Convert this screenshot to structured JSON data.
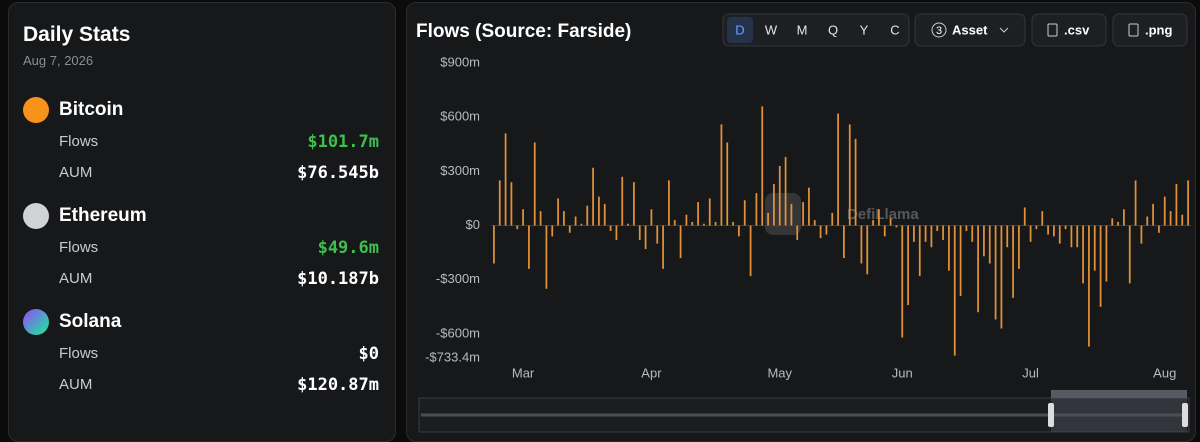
{
  "stats": {
    "title": "Daily Stats",
    "date": "Aug 7, 2026",
    "assets": [
      {
        "name": "Bitcoin",
        "flows_label": "Flows",
        "flows": "$101.7m",
        "aum_label": "AUM",
        "aum": "$76.545b"
      },
      {
        "name": "Ethereum",
        "flows_label": "Flows",
        "flows": "$49.6m",
        "aum_label": "AUM",
        "aum": "$10.187b"
      },
      {
        "name": "Solana",
        "flows_label": "Flows",
        "flows": "$0",
        "aum_label": "AUM",
        "aum": "$120.87m"
      }
    ]
  },
  "controls": {
    "periods": [
      "D",
      "W",
      "M",
      "Q",
      "Y",
      "C"
    ],
    "asset_count": 3,
    "asset": "Asset",
    "csv": ".csv",
    "png": ".png"
  },
  "watermark": "DefiLlama",
  "chart_data": {
    "type": "bar",
    "title": "Flows (Source: Farside)",
    "categories": [
      null,
      null,
      null,
      null,
      null,
      "Mar",
      null,
      null,
      null,
      null,
      null,
      null,
      null,
      null,
      null,
      null,
      null,
      null,
      null,
      null,
      null,
      null,
      null,
      null,
      null,
      null,
      null,
      "Apr",
      null,
      null,
      null,
      null,
      null,
      null,
      null,
      null,
      null,
      null,
      null,
      null,
      null,
      null,
      null,
      null,
      null,
      null,
      null,
      null,
      null,
      "May",
      null,
      null,
      null,
      null,
      null,
      null,
      null,
      null,
      null,
      null,
      null,
      null,
      null,
      null,
      null,
      null,
      null,
      null,
      null,
      null,
      "Jun",
      null,
      null,
      null,
      null,
      null,
      null,
      null,
      null,
      null,
      null,
      null,
      null,
      null,
      null,
      null,
      null,
      null,
      null,
      null,
      null,
      null,
      "Jul",
      null,
      null,
      null,
      null,
      null,
      null,
      null,
      null,
      null,
      null,
      null,
      null,
      null,
      null,
      null,
      null,
      null,
      null,
      null,
      null,
      null,
      null,
      "Aug",
      null,
      null,
      null,
      null
    ],
    "values": [
      -210,
      250,
      510,
      240,
      -20,
      90,
      -240,
      460,
      80,
      -350,
      -60,
      150,
      80,
      -40,
      50,
      10,
      110,
      320,
      160,
      120,
      -30,
      -80,
      270,
      10,
      240,
      -80,
      -130,
      90,
      -100,
      -240,
      250,
      30,
      -180,
      60,
      20,
      130,
      10,
      150,
      20,
      560,
      460,
      20,
      -60,
      140,
      -280,
      180,
      660,
      70,
      230,
      330,
      380,
      120,
      -80,
      130,
      210,
      30,
      -70,
      -50,
      70,
      620,
      -180,
      560,
      480,
      -210,
      -270,
      30,
      90,
      -60,
      40,
      -10,
      -620,
      -440,
      -90,
      -280,
      -90,
      -120,
      -30,
      -80,
      -250,
      -720,
      -390,
      -30,
      -90,
      -480,
      -170,
      -210,
      -520,
      -570,
      -120,
      -400,
      -240,
      100,
      -90,
      -20,
      80,
      -50,
      -60,
      -100,
      -20,
      -120,
      -120,
      -320,
      -670,
      -250,
      -450,
      -310,
      40,
      20,
      90,
      -320,
      250,
      -100,
      50,
      120,
      -40,
      160,
      80,
      230,
      60,
      250
    ],
    "color": "#e3913a",
    "ylim": [
      -733.4,
      900
    ],
    "yticks": [
      {
        "value": 900,
        "label": "$900m"
      },
      {
        "value": 600,
        "label": "$600m"
      },
      {
        "value": 300,
        "label": "$300m"
      },
      {
        "value": 0,
        "label": "$0"
      },
      {
        "value": -300,
        "label": "-$300m"
      },
      {
        "value": -600,
        "label": "-$600m"
      },
      {
        "value": -733.4,
        "label": "-$733.4m"
      }
    ],
    "grid": false
  }
}
